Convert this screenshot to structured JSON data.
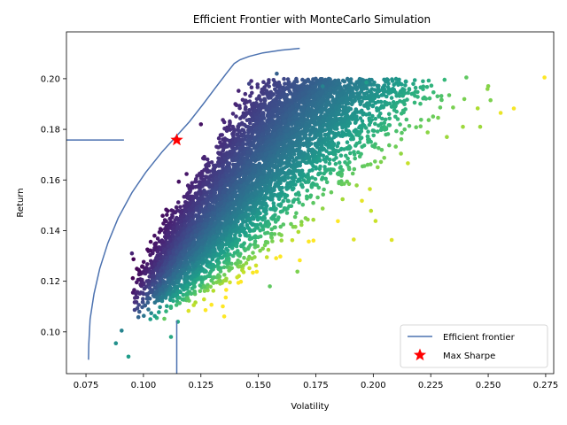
{
  "chart_data": {
    "type": "scatter",
    "title": "Efficient Frontier with MonteCarlo Simulation",
    "xlabel": "Volatility",
    "ylabel": "Return",
    "xlim": [
      0.0665,
      0.2785
    ],
    "ylim": [
      0.0835,
      0.2185
    ],
    "xticks": [
      0.075,
      0.1,
      0.125,
      0.15,
      0.175,
      0.2,
      0.225,
      0.25,
      0.275
    ],
    "xtick_labels": [
      "0.075",
      "0.100",
      "0.125",
      "0.150",
      "0.175",
      "0.200",
      "0.225",
      "0.250",
      "0.275"
    ],
    "yticks": [
      0.1,
      0.12,
      0.14,
      0.16,
      0.18,
      0.2
    ],
    "ytick_labels": [
      "0.10",
      "0.12",
      "0.14",
      "0.16",
      "0.18",
      "0.20"
    ],
    "grid": false,
    "legend_position": "lower-right",
    "colormap": "viridis",
    "series": [
      {
        "name": "Efficient frontier",
        "type": "line",
        "color": "#4c72b0",
        "x": [
          0.0761,
          0.0762,
          0.0768,
          0.0785,
          0.081,
          0.0845,
          0.089,
          0.095,
          0.101,
          0.108,
          0.114,
          0.12,
          0.126,
          0.131,
          0.136,
          0.1395,
          0.142,
          0.146,
          0.152,
          0.16,
          0.168
        ],
        "y": [
          0.089,
          0.095,
          0.105,
          0.115,
          0.125,
          0.135,
          0.145,
          0.155,
          0.163,
          0.171,
          0.177,
          0.183,
          0.19,
          0.196,
          0.202,
          0.206,
          0.2075,
          0.2088,
          0.2102,
          0.2113,
          0.212
        ]
      },
      {
        "name": "",
        "type": "line",
        "color": "#4c72b0",
        "x": [
          0.0665,
          0.0915
        ],
        "y": [
          0.1758,
          0.1758
        ]
      },
      {
        "name": "",
        "type": "line",
        "color": "#4c72b0",
        "x": [
          0.1145,
          0.1145
        ],
        "y": [
          0.0835,
          0.1045
        ]
      },
      {
        "name": "Max Sharpe",
        "type": "marker",
        "marker": "star",
        "color": "#ff0000",
        "x": [
          0.1145
        ],
        "y": [
          0.1758
        ]
      }
    ],
    "scatter_cloud": {
      "note_color_encoding": "sharpe-ratio viridis scale",
      "anchor_points": [
        {
          "x": 0.088,
          "y": 0.0955,
          "c": 0.5
        },
        {
          "x": 0.0935,
          "y": 0.0902,
          "c": 0.55
        },
        {
          "x": 0.0905,
          "y": 0.1005,
          "c": 0.45
        },
        {
          "x": 0.095,
          "y": 0.131,
          "c": 0.1
        },
        {
          "x": 0.103,
          "y": 0.105,
          "c": 0.55
        },
        {
          "x": 0.112,
          "y": 0.098,
          "c": 0.6
        },
        {
          "x": 0.115,
          "y": 0.104,
          "c": 0.6
        },
        {
          "x": 0.125,
          "y": 0.182,
          "c": 0.05
        },
        {
          "x": 0.14,
          "y": 0.19,
          "c": 0.1
        },
        {
          "x": 0.146,
          "y": 0.198,
          "c": 0.2
        },
        {
          "x": 0.158,
          "y": 0.202,
          "c": 0.3
        },
        {
          "x": 0.178,
          "y": 0.197,
          "c": 0.45
        },
        {
          "x": 0.197,
          "y": 0.1985,
          "c": 0.55
        },
        {
          "x": 0.2405,
          "y": 0.2005,
          "c": 0.75
        },
        {
          "x": 0.2745,
          "y": 0.2005,
          "c": 1.0
        },
        {
          "x": 0.251,
          "y": 0.1915,
          "c": 0.8
        },
        {
          "x": 0.233,
          "y": 0.1935,
          "c": 0.75
        },
        {
          "x": 0.2465,
          "y": 0.181,
          "c": 0.85
        },
        {
          "x": 0.239,
          "y": 0.181,
          "c": 0.85
        },
        {
          "x": 0.232,
          "y": 0.177,
          "c": 0.85
        },
        {
          "x": 0.1915,
          "y": 0.1365,
          "c": 0.95
        },
        {
          "x": 0.208,
          "y": 0.1363,
          "c": 0.95
        },
        {
          "x": 0.199,
          "y": 0.1478,
          "c": 0.9
        },
        {
          "x": 0.201,
          "y": 0.1438,
          "c": 0.92
        },
        {
          "x": 0.167,
          "y": 0.1238,
          "c": 0.8
        },
        {
          "x": 0.155,
          "y": 0.118,
          "c": 0.75
        }
      ]
    }
  }
}
